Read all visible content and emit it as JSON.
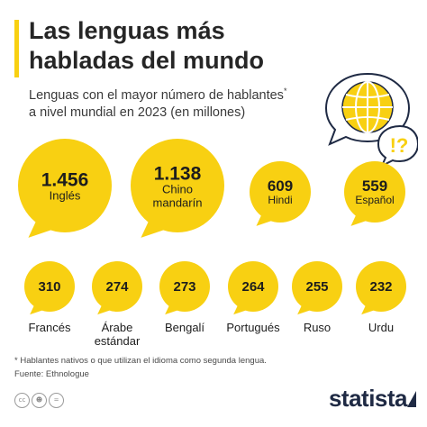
{
  "header": {
    "title": "Las lenguas más habladas del mundo",
    "subtitle": "Lenguas con el mayor número de hablantes",
    "subtitle_mark": "*",
    "subtitle_line2": "a nivel mundial en 2023 (en millones)"
  },
  "hero": {
    "icon": "speech-bubbles-globe-question-icon",
    "mark": "!?"
  },
  "chart_data": {
    "type": "bubble",
    "unit": "millones de hablantes",
    "categories": [
      "Inglés",
      "Chino mandarín",
      "Hindi",
      "Español",
      "Francés",
      "Árabe estándar",
      "Bengalí",
      "Portugués",
      "Ruso",
      "Urdu"
    ],
    "values": [
      1456,
      1138,
      609,
      559,
      310,
      274,
      273,
      264,
      255,
      232
    ],
    "value_labels": [
      "1.456",
      "1.138",
      "609",
      "559",
      "310",
      "274",
      "273",
      "264",
      "255",
      "232"
    ],
    "label_lines": [
      [
        "Inglés"
      ],
      [
        "Chino",
        "mandarín"
      ],
      [
        "Hindi"
      ],
      [
        "Español"
      ],
      [
        "Francés"
      ],
      [
        "Árabe",
        "estándar"
      ],
      [
        "Bengalí"
      ],
      [
        "Portugués"
      ],
      [
        "Ruso"
      ],
      [
        "Urdu"
      ]
    ],
    "bubble_color": "#f8d012"
  },
  "footer": {
    "note": "* Hablantes nativos o que utilizan el idioma como segunda lengua.",
    "source": "Fuente: Ethnologue",
    "license_icons": [
      "cc-icon",
      "by-icon",
      "equals-icon"
    ],
    "brand": "statista"
  }
}
